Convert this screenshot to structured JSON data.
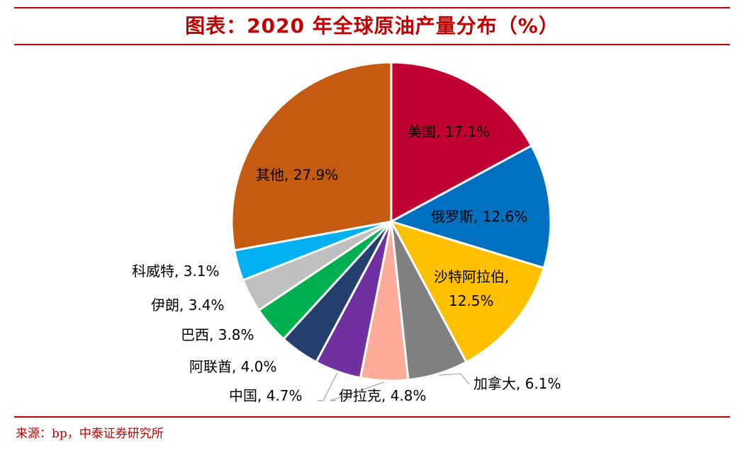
{
  "title": "图表：2020 年全球原油产量分布（%）",
  "source": "来源：bp，中泰证券研究所",
  "chart_data": {
    "type": "pie",
    "title": "图表：2020 年全球原油产量分布（%）",
    "unit": "%",
    "slices": [
      {
        "name": "美国",
        "value": 17.1,
        "label": "美国, 17.1%",
        "color": "#c00030"
      },
      {
        "name": "俄罗斯",
        "value": 12.6,
        "label": "俄罗斯, 12.6%",
        "color": "#0070c0"
      },
      {
        "name": "沙特阿拉伯",
        "value": 12.5,
        "label": "沙特阿拉伯, 12.5%",
        "label_line1": "沙特阿拉伯,",
        "label_line2": "12.5%",
        "color": "#ffc000"
      },
      {
        "name": "加拿大",
        "value": 6.1,
        "label": "加拿大, 6.1%",
        "color": "#808080"
      },
      {
        "name": "伊拉克",
        "value": 4.8,
        "label": "伊拉克, 4.8%",
        "color": "#ffab99"
      },
      {
        "name": "中国",
        "value": 4.7,
        "label": "中国, 4.7%",
        "color": "#7030a0"
      },
      {
        "name": "阿联酋",
        "value": 4.0,
        "label": "阿联酋, 4.0%",
        "color": "#243f6e"
      },
      {
        "name": "巴西",
        "value": 3.8,
        "label": "巴西, 3.8%",
        "color": "#00b050"
      },
      {
        "name": "伊朗",
        "value": 3.4,
        "label": "伊朗, 3.4%",
        "color": "#bfbfbf"
      },
      {
        "name": "科威特",
        "value": 3.1,
        "label": "科威特, 3.1%",
        "color": "#00b0f0"
      },
      {
        "name": "其他",
        "value": 27.9,
        "label": "其他, 27.9%",
        "color": "#c55a11"
      }
    ]
  }
}
